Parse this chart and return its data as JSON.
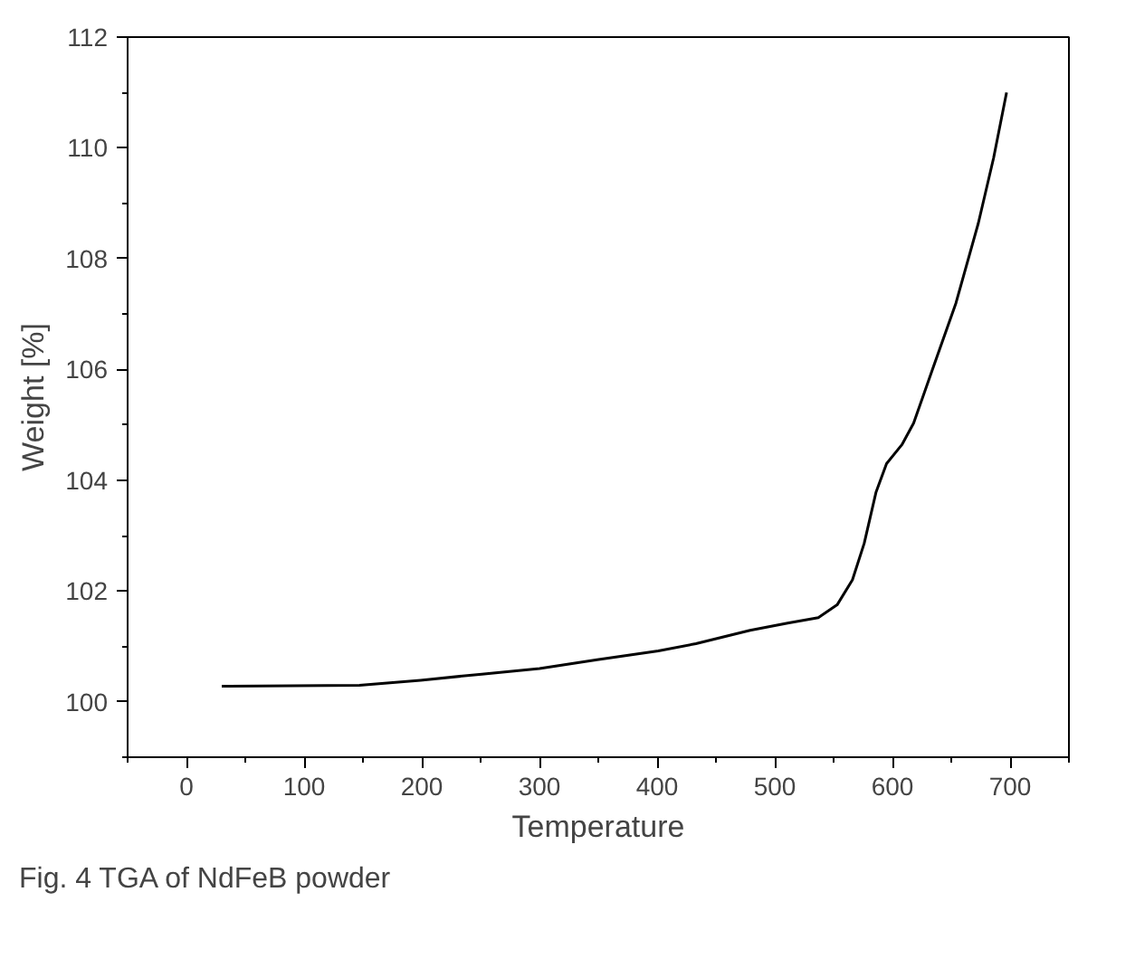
{
  "chart_data": {
    "type": "line",
    "xlabel": "Temperature",
    "ylabel": "Weight [%]",
    "annotations": [
      "Fig. 4 TGA of NdFeB powder"
    ],
    "xlim": [
      -50,
      750
    ],
    "xticks": [
      0,
      100,
      200,
      300,
      400,
      500,
      600,
      700
    ],
    "ylim": [
      99,
      112
    ],
    "yticks": [
      100,
      102,
      104,
      106,
      108,
      110,
      112
    ],
    "grid": false,
    "line_style": "solid",
    "marker": "none",
    "series": [
      {
        "color": "#000000",
        "x": [
          30,
          147,
          199,
          251,
          300,
          349,
          401,
          433,
          479,
          511,
          537,
          553,
          566,
          576,
          586,
          595,
          608,
          618,
          634,
          654,
          673,
          686,
          697
        ],
        "values": [
          100.28,
          100.3,
          100.39,
          100.5,
          100.6,
          100.76,
          100.92,
          101.05,
          101.29,
          101.42,
          101.52,
          101.75,
          102.2,
          102.86,
          103.78,
          104.3,
          104.64,
          105.03,
          106.0,
          107.2,
          108.64,
          109.82,
          111.0
        ]
      }
    ]
  }
}
